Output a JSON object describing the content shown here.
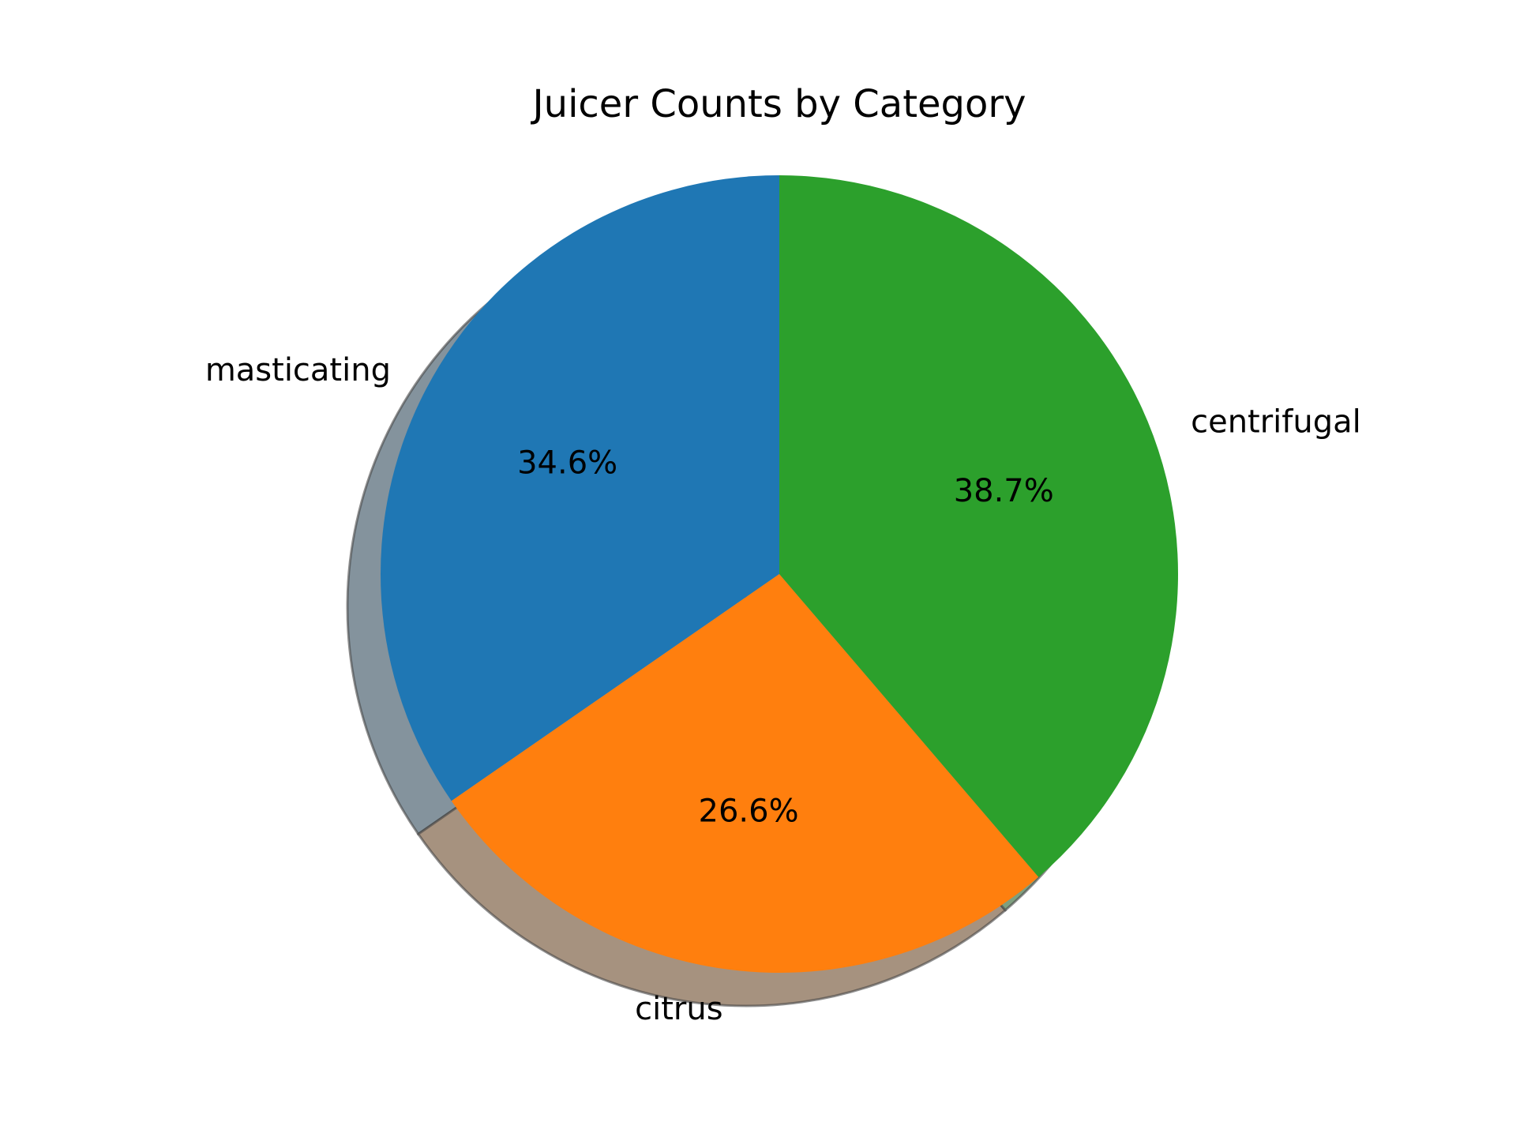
{
  "chart_data": {
    "type": "pie",
    "title": "Juicer Counts by Category",
    "start_angle_deg": 90,
    "direction": "counterclockwise",
    "shadow": true,
    "slices": [
      {
        "label": "masticating",
        "percent": 34.6,
        "pct_label": "34.6%",
        "color": "#1f77b4",
        "shadow_color": "#84939d"
      },
      {
        "label": "citrus",
        "percent": 26.6,
        "pct_label": "26.6%",
        "color": "#ff7f0e",
        "shadow_color": "#a6927f"
      },
      {
        "label": "centrifugal",
        "percent": 38.7,
        "pct_label": "38.7%",
        "color": "#2ca02c",
        "shadow_color": "#7f9f7f"
      }
    ]
  }
}
